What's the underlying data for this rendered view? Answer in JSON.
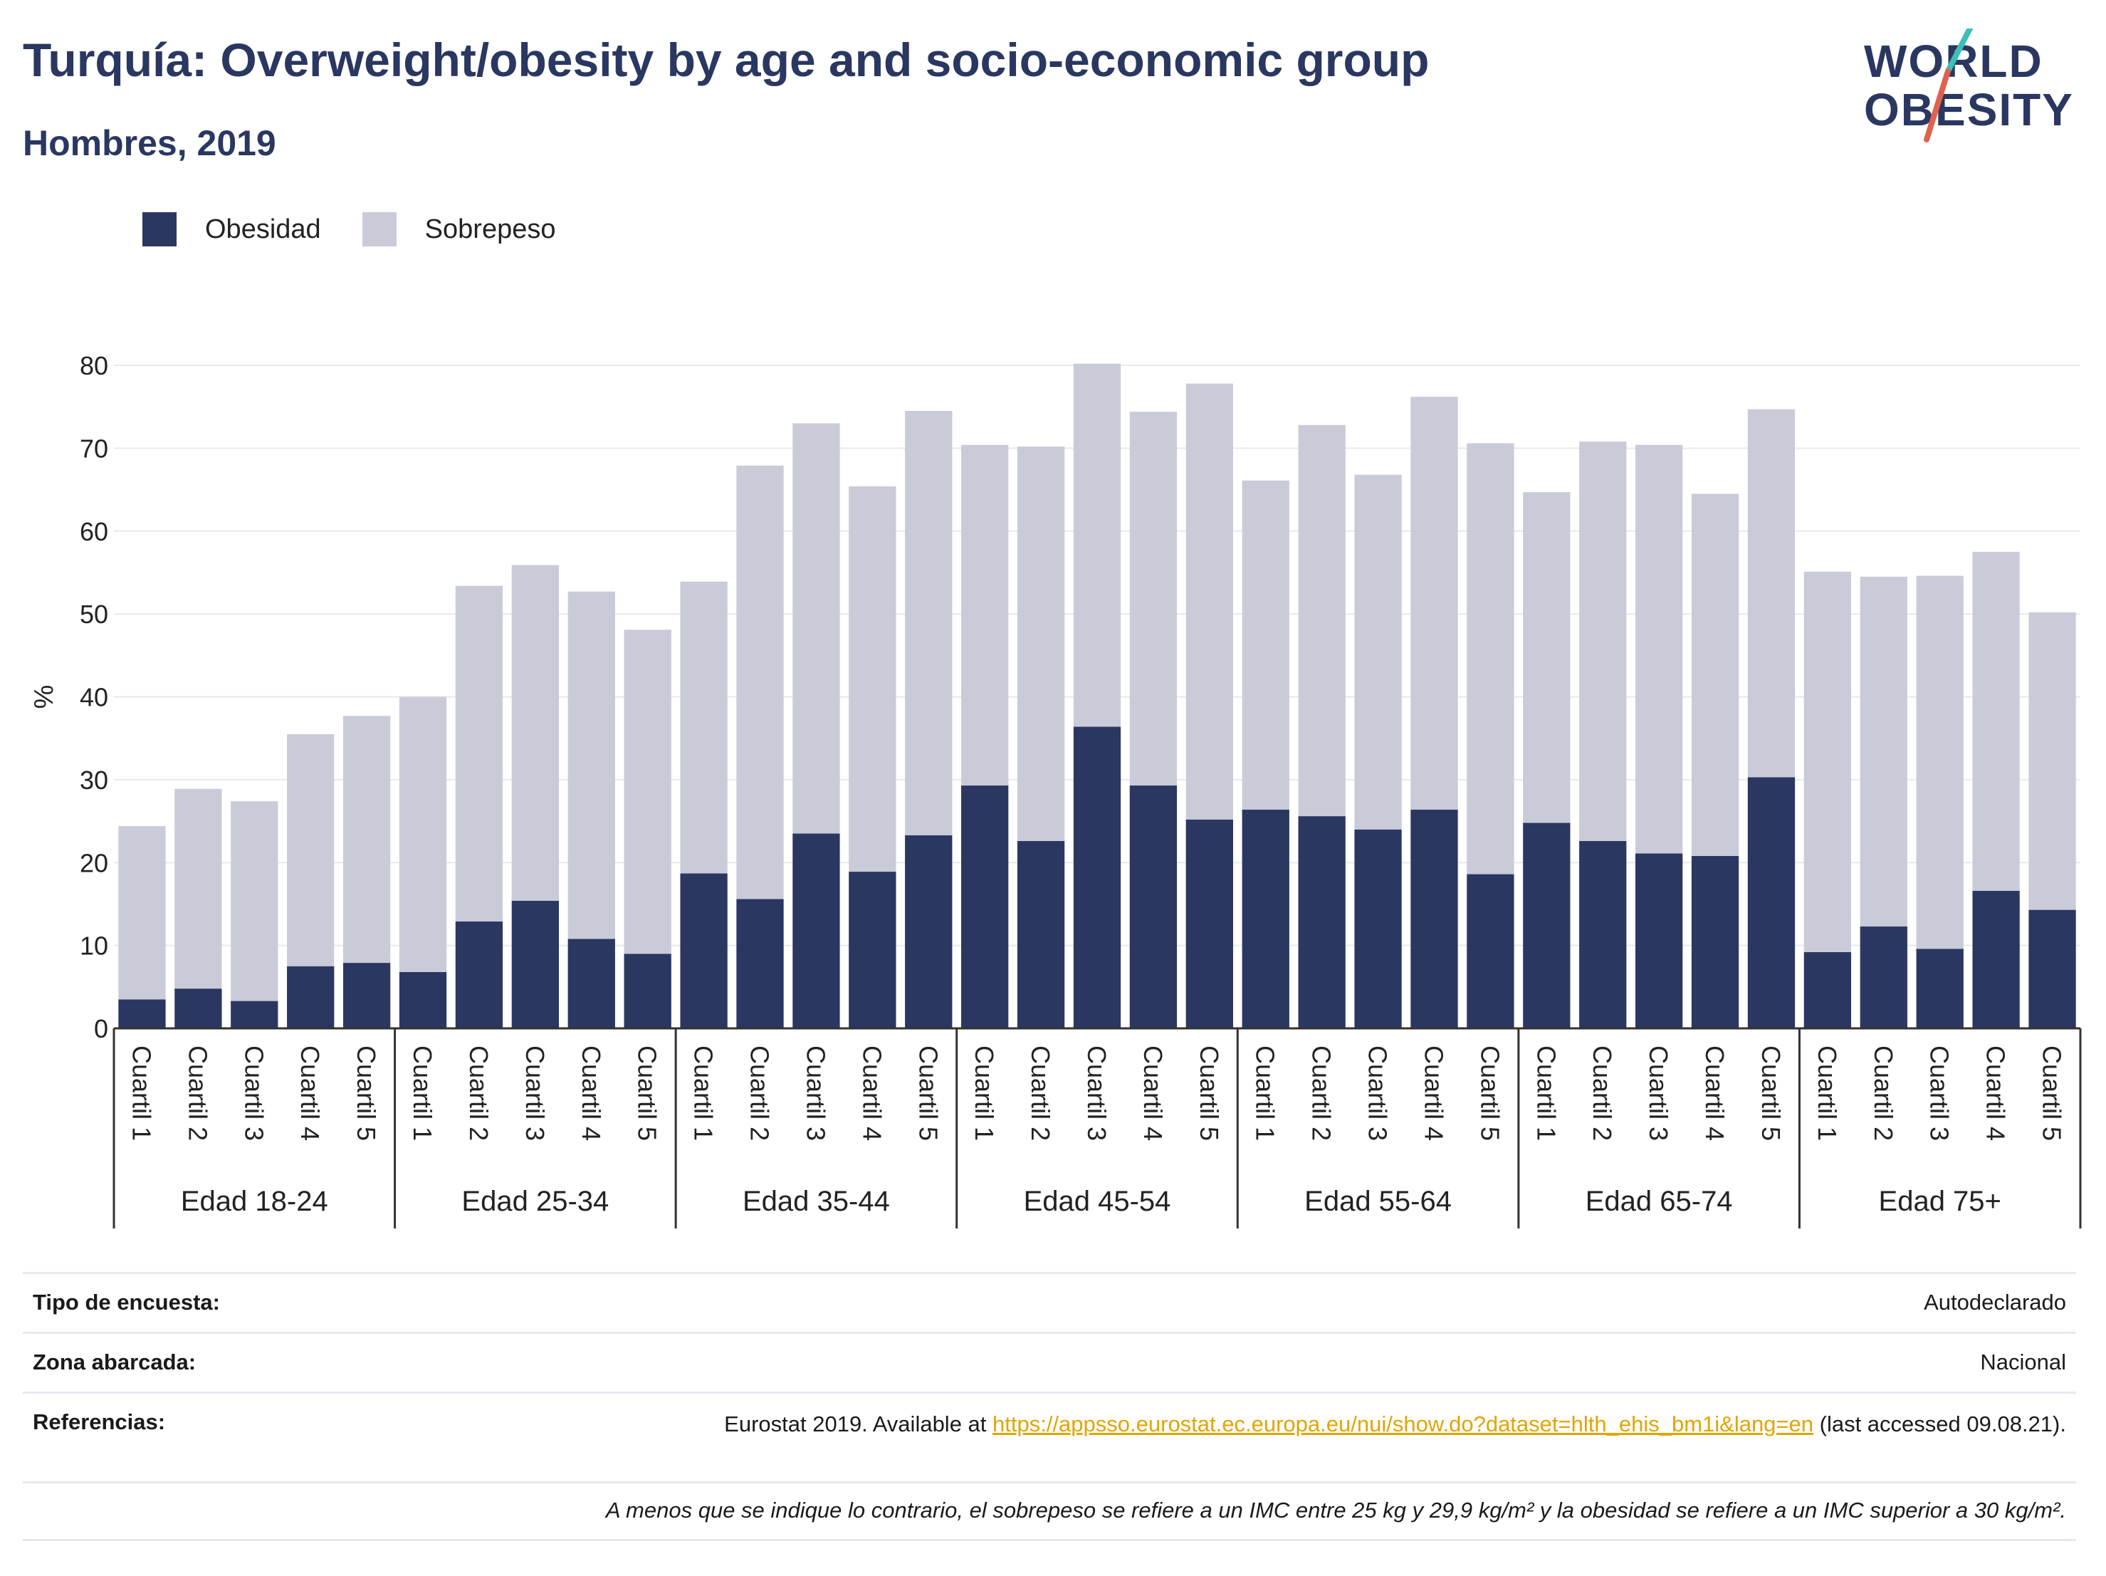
{
  "header": {
    "title": "Turquía: Overweight/obesity by age and socio-economic group",
    "subtitle": "Hombres, 2019"
  },
  "logo": {
    "line1": "WORLD",
    "line2": "OBESITY"
  },
  "colors": {
    "obesity": "#2a3761",
    "overweight": "#cacbd8",
    "accent": "#e3a400",
    "logo_red": "#e0624e",
    "logo_teal": "#3bbfb8"
  },
  "legend": [
    {
      "label": "Obesidad",
      "color": "#2a3761"
    },
    {
      "label": "Sobrepeso",
      "color": "#cacbd8"
    }
  ],
  "chart_data": {
    "type": "bar",
    "stacked": true,
    "ylabel": "%",
    "ylim": [
      0,
      80
    ],
    "yticks": [
      0,
      10,
      20,
      30,
      40,
      50,
      60,
      70,
      80
    ],
    "grid": true,
    "legend_position": "top-left",
    "group_labels": [
      "Edad 18-24",
      "Edad 25-34",
      "Edad 35-44",
      "Edad 45-54",
      "Edad 55-64",
      "Edad 65-74",
      "Edad 75+"
    ],
    "sub_labels": [
      "Cuartil 1",
      "Cuartil 2",
      "Cuartil 3",
      "Cuartil 4",
      "Cuartil 5"
    ],
    "series": [
      {
        "name": "Obesidad",
        "color": "#2a3761",
        "values": [
          3.5,
          4.8,
          3.3,
          7.5,
          7.9,
          6.8,
          12.9,
          15.4,
          10.8,
          9.0,
          18.7,
          15.6,
          23.5,
          18.9,
          23.3,
          29.3,
          22.6,
          36.4,
          29.3,
          25.2,
          26.4,
          25.6,
          24.0,
          26.4,
          18.6,
          24.8,
          22.6,
          21.1,
          20.8,
          30.3,
          9.2,
          12.3,
          9.6,
          16.6,
          14.3
        ]
      },
      {
        "name": "Sobrepeso",
        "color": "#cacbd8",
        "values": [
          20.9,
          24.1,
          24.1,
          28.0,
          29.8,
          33.2,
          40.5,
          40.5,
          41.9,
          39.1,
          35.2,
          52.3,
          49.5,
          46.5,
          51.2,
          41.1,
          47.6,
          43.8,
          45.1,
          52.6,
          39.7,
          47.2,
          42.8,
          49.8,
          52.0,
          39.9,
          48.2,
          49.3,
          43.7,
          44.4,
          45.9,
          42.2,
          45.0,
          40.9,
          35.9
        ]
      }
    ]
  },
  "info": {
    "survey_label": "Tipo de encuesta:",
    "survey_value": "Autodeclarado",
    "area_label": "Zona abarcada:",
    "area_value": "Nacional",
    "ref_label": "Referencias:",
    "ref_prefix": "Eurostat 2019. Available at ",
    "ref_link": "https://appsso.eurostat.ec.europa.eu/nui/show.do?dataset=hlth_ehis_bm1i&lang=en",
    "ref_suffix": " (last accessed 09.08.21).",
    "footnote": "A menos que se indique lo contrario, el sobrepeso se refiere a un IMC entre 25 kg y 29,9 kg/m² y la obesidad se refiere a un IMC superior a 30 kg/m²."
  }
}
